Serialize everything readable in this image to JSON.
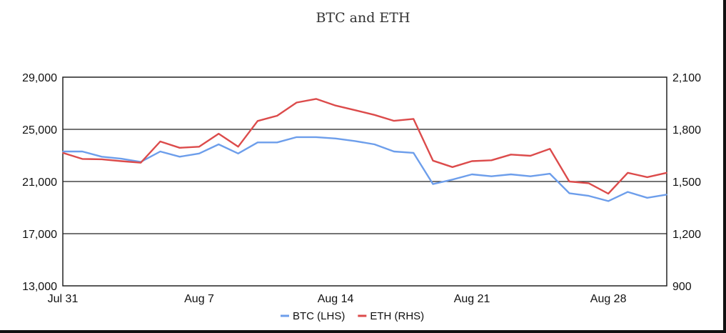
{
  "chart_data": {
    "type": "line",
    "title": "BTC and ETH",
    "x": [
      "Jul 31",
      "Aug 1",
      "Aug 2",
      "Aug 3",
      "Aug 4",
      "Aug 5",
      "Aug 6",
      "Aug 7",
      "Aug 8",
      "Aug 9",
      "Aug 10",
      "Aug 11",
      "Aug 12",
      "Aug 13",
      "Aug 14",
      "Aug 15",
      "Aug 16",
      "Aug 17",
      "Aug 18",
      "Aug 19",
      "Aug 20",
      "Aug 21",
      "Aug 22",
      "Aug 23",
      "Aug 24",
      "Aug 25",
      "Aug 26",
      "Aug 27",
      "Aug 28",
      "Aug 29",
      "Aug 30",
      "Aug 31"
    ],
    "x_tick_labels": [
      "Jul 31",
      "Aug 7",
      "Aug 14",
      "Aug 21",
      "Aug 28"
    ],
    "left_axis": {
      "ylim": [
        13000,
        29000
      ],
      "ticks": [
        "13,000",
        "17,000",
        "21,000",
        "25,000",
        "29,000"
      ]
    },
    "right_axis": {
      "ylim": [
        900,
        2100
      ],
      "ticks": [
        "900",
        "1,200",
        "1,500",
        "1,800",
        "2,100"
      ]
    },
    "series": [
      {
        "name": "BTC (LHS)",
        "axis": "left",
        "color": "#6d9eeb",
        "values": [
          23300,
          23300,
          22900,
          22750,
          22500,
          23300,
          22900,
          23150,
          23850,
          23150,
          24000,
          24000,
          24400,
          24400,
          24300,
          24100,
          23850,
          23300,
          23200,
          20800,
          21150,
          21550,
          21400,
          21550,
          21400,
          21600,
          20100,
          19900,
          19500,
          20200,
          19750,
          20000
        ]
      },
      {
        "name": "ETH (RHS)",
        "axis": "right",
        "color": "#dc4b4b",
        "values": [
          1665,
          1630,
          1628,
          1617,
          1608,
          1730,
          1694,
          1700,
          1775,
          1700,
          1848,
          1878,
          1954,
          1975,
          1937,
          1910,
          1883,
          1849,
          1860,
          1620,
          1583,
          1617,
          1622,
          1655,
          1648,
          1688,
          1500,
          1490,
          1430,
          1550,
          1525,
          1550
        ]
      }
    ],
    "legend_position": "bottom-center",
    "grid": "horizontal"
  }
}
